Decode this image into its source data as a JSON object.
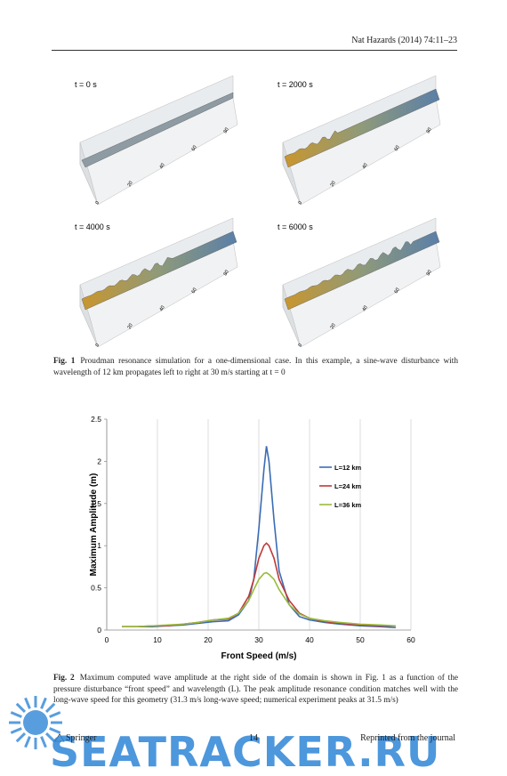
{
  "header": {
    "journal": "Nat Hazards (2014) 74:11–23"
  },
  "figure1": {
    "panels": [
      {
        "label": "t = 0 s"
      },
      {
        "label": "t = 2000 s"
      },
      {
        "label": "t = 4000 s"
      },
      {
        "label": "t = 6000 s"
      }
    ],
    "axis_ticks": [
      "0",
      "20",
      "40",
      "60",
      "80"
    ],
    "caption_label": "Fig. 1",
    "caption": "Proudman resonance simulation for a one-dimensional case. In this example, a sine-wave disturbance with wavelength of 12 km propagates left to right at 30 m/s starting at t = 0"
  },
  "chart_data": {
    "type": "line",
    "x_label": "Front Speed (m/s)",
    "y_label": "Maximum Amplitude (m)",
    "x": [
      3,
      6,
      9,
      12,
      15,
      18,
      21,
      24,
      26,
      28,
      29,
      30,
      31,
      31.5,
      32,
      33,
      34,
      36,
      38,
      40,
      43,
      46,
      50,
      54,
      57
    ],
    "series": [
      {
        "name": "L=12 km",
        "color": "#3a6cb4",
        "values": [
          0.04,
          0.04,
          0.04,
          0.05,
          0.06,
          0.08,
          0.1,
          0.11,
          0.18,
          0.35,
          0.6,
          1.2,
          1.9,
          2.18,
          2.0,
          1.3,
          0.7,
          0.3,
          0.16,
          0.12,
          0.09,
          0.07,
          0.05,
          0.04,
          0.03
        ]
      },
      {
        "name": "L=24 km",
        "color": "#c0393b",
        "values": [
          0.04,
          0.04,
          0.05,
          0.05,
          0.07,
          0.09,
          0.12,
          0.13,
          0.2,
          0.4,
          0.6,
          0.85,
          1.0,
          1.03,
          1.0,
          0.85,
          0.6,
          0.35,
          0.2,
          0.14,
          0.1,
          0.08,
          0.06,
          0.05,
          0.05
        ]
      },
      {
        "name": "L=36 km",
        "color": "#9bbb3b",
        "values": [
          0.04,
          0.04,
          0.05,
          0.06,
          0.07,
          0.09,
          0.12,
          0.14,
          0.2,
          0.35,
          0.48,
          0.6,
          0.67,
          0.68,
          0.66,
          0.6,
          0.48,
          0.3,
          0.19,
          0.14,
          0.11,
          0.09,
          0.07,
          0.06,
          0.05
        ]
      }
    ],
    "xlim": [
      0,
      60
    ],
    "xticks": [
      0,
      10,
      20,
      30,
      40,
      50,
      60
    ],
    "ylim": [
      0,
      2.5
    ],
    "yticks": [
      0,
      0.5,
      1,
      1.5,
      2,
      2.5
    ],
    "grid": true,
    "grid_axis": "x",
    "legend": "upper-right"
  },
  "figure2": {
    "caption_label": "Fig. 2",
    "caption": "Maximum computed wave amplitude at the right side of the domain is shown in Fig. 1 as a function of the pressure disturbance “front speed” and wavelength (L). The peak amplitude resonance condition matches well with the long-wave speed for this geometry (31.3 m/s long-wave speed; numerical experiment peaks at 31.5 m/s)"
  },
  "footer": {
    "publisher": "Springer",
    "page": "14",
    "note": "Reprinted from the journal"
  },
  "watermark": "SEATRACKER.RU"
}
